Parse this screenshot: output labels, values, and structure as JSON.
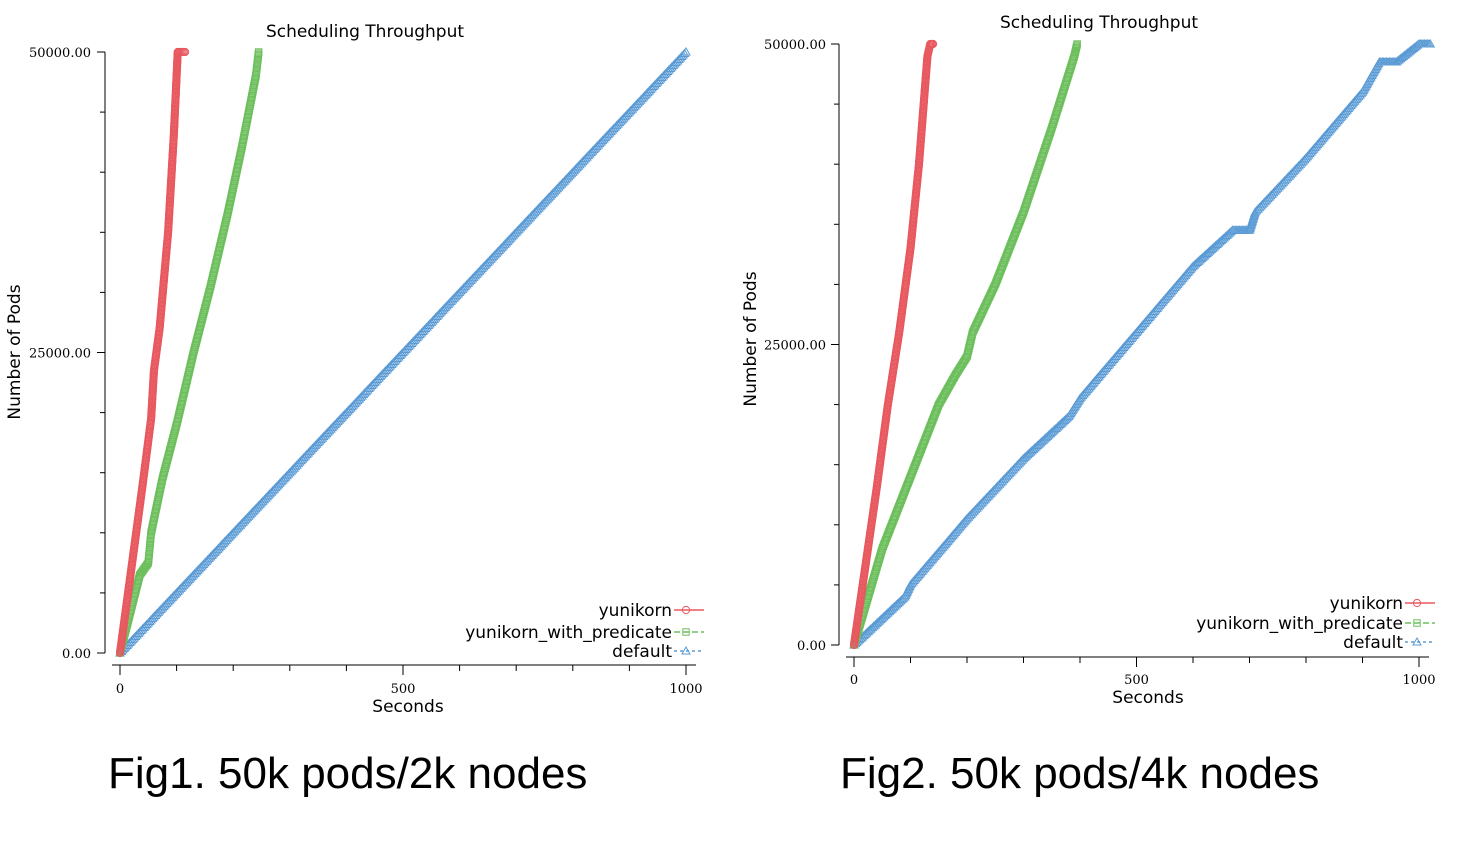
{
  "chart_data": [
    {
      "type": "scatter",
      "title": "Scheduling Throughput",
      "xlabel": "Seconds",
      "ylabel": "Number of Pods",
      "xlim": [
        0,
        1000
      ],
      "ylim": [
        0,
        50000
      ],
      "x_ticks": [
        "0",
        "500",
        "1000"
      ],
      "y_ticks": [
        "0.00",
        "25000.00",
        "50000.00"
      ],
      "grid": false,
      "legend_position": "bottom-right",
      "caption": "Fig1. 50k pods/2k nodes",
      "series": [
        {
          "name": "yunikorn",
          "color": "#e8585f",
          "marker": "circle",
          "points": [
            [
              0,
              0
            ],
            [
              20,
              7000
            ],
            [
              40,
              14000
            ],
            [
              55,
              19500
            ],
            [
              60,
              23500
            ],
            [
              70,
              27000
            ],
            [
              85,
              35000
            ],
            [
              95,
              43000
            ],
            [
              100,
              48000
            ],
            [
              102,
              50000
            ],
            [
              115,
              50000
            ]
          ]
        },
        {
          "name": "yunikorn_with_predicate",
          "color": "#6cbf5c",
          "marker": "square",
          "points": [
            [
              0,
              0
            ],
            [
              35,
              6500
            ],
            [
              50,
              7500
            ],
            [
              55,
              10000
            ],
            [
              75,
              14500
            ],
            [
              100,
              19000
            ],
            [
              130,
              25000
            ],
            [
              160,
              30500
            ],
            [
              190,
              36500
            ],
            [
              215,
              42000
            ],
            [
              240,
              48000
            ],
            [
              245,
              50000
            ]
          ]
        },
        {
          "name": "default",
          "color": "#5b9bd5",
          "marker": "triangle",
          "points": [
            [
              0,
              0
            ],
            [
              100,
              5000
            ],
            [
              200,
              10000
            ],
            [
              300,
              15000
            ],
            [
              400,
              20000
            ],
            [
              500,
              25000
            ],
            [
              600,
              30000
            ],
            [
              700,
              35000
            ],
            [
              800,
              40000
            ],
            [
              900,
              45000
            ],
            [
              1000,
              50000
            ]
          ]
        }
      ]
    },
    {
      "type": "scatter",
      "title": "Scheduling Throughput",
      "xlabel": "Seconds",
      "ylabel": "Number of Pods",
      "xlim": [
        0,
        1000
      ],
      "ylim": [
        0,
        50000
      ],
      "x_ticks": [
        "0",
        "500",
        "1000"
      ],
      "y_ticks": [
        "0.00",
        "25000.00",
        "50000.00"
      ],
      "grid": false,
      "legend_position": "bottom-right",
      "caption": "Fig2. 50k pods/4k nodes",
      "series": [
        {
          "name": "yunikorn",
          "color": "#e8585f",
          "marker": "circle",
          "points": [
            [
              0,
              0
            ],
            [
              20,
              6500
            ],
            [
              40,
              13000
            ],
            [
              60,
              20000
            ],
            [
              80,
              26000
            ],
            [
              100,
              33000
            ],
            [
              115,
              40000
            ],
            [
              125,
              46000
            ],
            [
              130,
              49000
            ],
            [
              135,
              50000
            ],
            [
              140,
              50000
            ]
          ]
        },
        {
          "name": "yunikorn_with_predicate",
          "color": "#6cbf5c",
          "marker": "square",
          "points": [
            [
              0,
              0
            ],
            [
              50,
              8000
            ],
            [
              100,
              14000
            ],
            [
              150,
              20000
            ],
            [
              180,
              22500
            ],
            [
              200,
              24000
            ],
            [
              210,
              26000
            ],
            [
              250,
              30000
            ],
            [
              300,
              36000
            ],
            [
              350,
              43000
            ],
            [
              390,
              49000
            ],
            [
              395,
              50000
            ]
          ]
        },
        {
          "name": "default",
          "color": "#5b9bd5",
          "marker": "triangle",
          "points": [
            [
              0,
              0
            ],
            [
              90,
              4000
            ],
            [
              100,
              5000
            ],
            [
              200,
              10500
            ],
            [
              300,
              15500
            ],
            [
              380,
              19000
            ],
            [
              400,
              20500
            ],
            [
              500,
              26000
            ],
            [
              600,
              31500
            ],
            [
              670,
              34500
            ],
            [
              700,
              34500
            ],
            [
              710,
              36000
            ],
            [
              800,
              40500
            ],
            [
              900,
              46000
            ],
            [
              930,
              48500
            ],
            [
              960,
              48500
            ],
            [
              1000,
              50000
            ],
            [
              1020,
              50000
            ]
          ]
        }
      ]
    }
  ]
}
